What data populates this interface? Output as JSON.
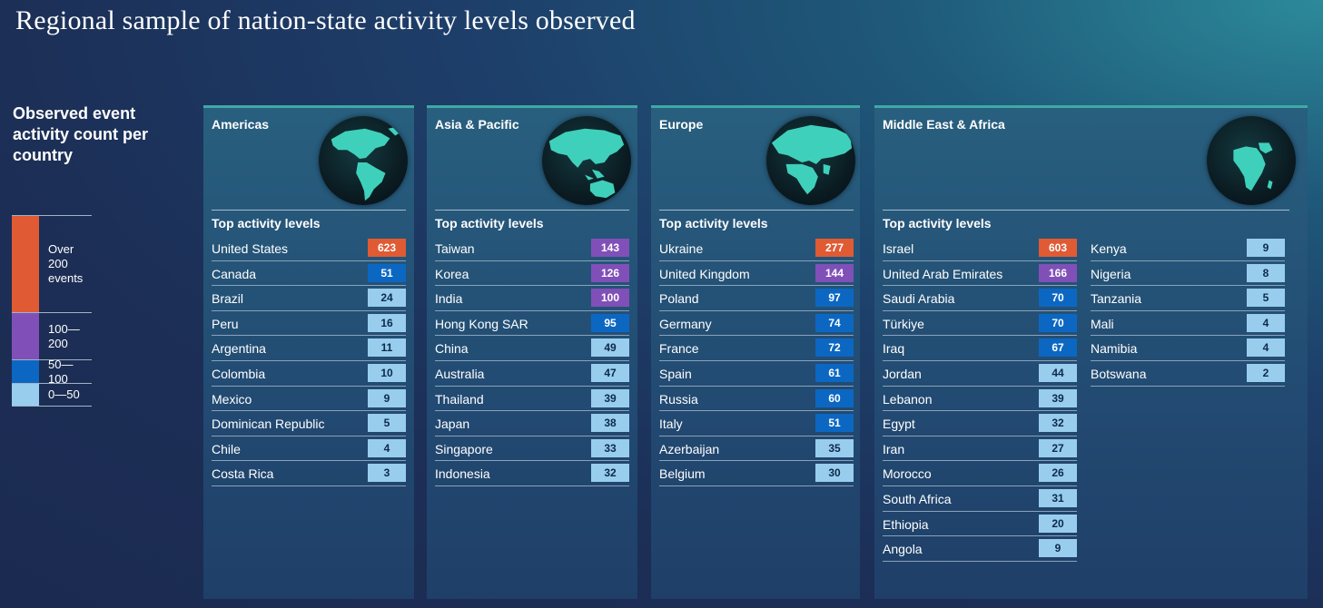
{
  "title": "Regional sample of nation-state activity levels observed",
  "legend": {
    "title": "Observed event activity count per country",
    "items": [
      {
        "label": "Over 200 events",
        "color": "#e05a34"
      },
      {
        "label": "100—200",
        "color": "#8050b8"
      },
      {
        "label": "50—100",
        "color": "#0c67c2"
      },
      {
        "label": "0—50",
        "color": "#98cdee"
      }
    ]
  },
  "list_header": "Top activity levels",
  "chart_data": {
    "type": "table",
    "color_bins": [
      {
        "min": 200,
        "label": "Over 200 events",
        "color": "#e05a34"
      },
      {
        "min": 100,
        "max": 200,
        "label": "100—200",
        "color": "#8050b8"
      },
      {
        "min": 50,
        "max": 100,
        "label": "50—100",
        "color": "#0c67c2"
      },
      {
        "min": 0,
        "max": 50,
        "label": "0—50",
        "color": "#98cdee"
      }
    ],
    "regions": [
      {
        "name": "Americas",
        "countries": [
          {
            "name": "United States",
            "value": 623
          },
          {
            "name": "Canada",
            "value": 51
          },
          {
            "name": "Brazil",
            "value": 24
          },
          {
            "name": "Peru",
            "value": 16
          },
          {
            "name": "Argentina",
            "value": 11
          },
          {
            "name": "Colombia",
            "value": 10
          },
          {
            "name": "Mexico",
            "value": 9
          },
          {
            "name": "Dominican Republic",
            "value": 5
          },
          {
            "name": "Chile",
            "value": 4
          },
          {
            "name": "Costa Rica",
            "value": 3
          }
        ]
      },
      {
        "name": "Asia & Pacific",
        "countries": [
          {
            "name": "Taiwan",
            "value": 143
          },
          {
            "name": "Korea",
            "value": 126
          },
          {
            "name": "India",
            "value": 100
          },
          {
            "name": "Hong Kong SAR",
            "value": 95
          },
          {
            "name": "China",
            "value": 49
          },
          {
            "name": "Australia",
            "value": 47
          },
          {
            "name": "Thailand",
            "value": 39
          },
          {
            "name": "Japan",
            "value": 38
          },
          {
            "name": "Singapore",
            "value": 33
          },
          {
            "name": "Indonesia",
            "value": 32
          }
        ]
      },
      {
        "name": "Europe",
        "countries": [
          {
            "name": "Ukraine",
            "value": 277
          },
          {
            "name": "United Kingdom",
            "value": 144
          },
          {
            "name": "Poland",
            "value": 97
          },
          {
            "name": "Germany",
            "value": 74
          },
          {
            "name": "France",
            "value": 72
          },
          {
            "name": "Spain",
            "value": 61
          },
          {
            "name": "Russia",
            "value": 60
          },
          {
            "name": "Italy",
            "value": 51
          },
          {
            "name": "Azerbaijan",
            "value": 35
          },
          {
            "name": "Belgium",
            "value": 30
          }
        ]
      },
      {
        "name": "Middle East & Africa",
        "countries": [
          {
            "name": "Israel",
            "value": 603
          },
          {
            "name": "United Arab Emirates",
            "value": 166
          },
          {
            "name": "Saudi Arabia",
            "value": 70
          },
          {
            "name": "Türkiye",
            "value": 70
          },
          {
            "name": "Iraq",
            "value": 67
          },
          {
            "name": "Jordan",
            "value": 44
          },
          {
            "name": "Lebanon",
            "value": 39
          },
          {
            "name": "Egypt",
            "value": 32
          },
          {
            "name": "Iran",
            "value": 27
          },
          {
            "name": "Morocco",
            "value": 26
          },
          {
            "name": "South Africa",
            "value": 31
          },
          {
            "name": "Ethiopia",
            "value": 20
          },
          {
            "name": "Angola",
            "value": 9
          },
          {
            "name": "Kenya",
            "value": 9
          },
          {
            "name": "Nigeria",
            "value": 8
          },
          {
            "name": "Tanzania",
            "value": 5
          },
          {
            "name": "Mali",
            "value": 4
          },
          {
            "name": "Namibia",
            "value": 4
          },
          {
            "name": "Botswana",
            "value": 2
          }
        ]
      }
    ]
  }
}
